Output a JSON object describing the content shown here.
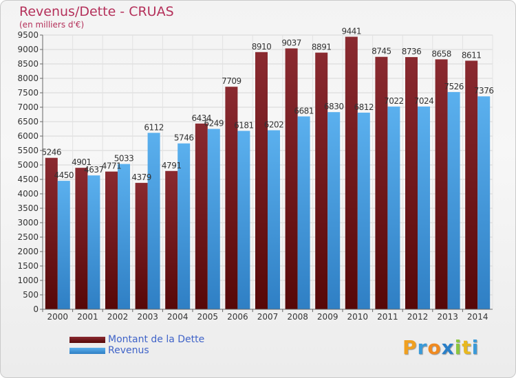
{
  "header": {
    "title": "Revenus/Dette - CRUAS",
    "subtitle": "(en milliers d'€)"
  },
  "chart_data": {
    "type": "bar",
    "title": "Revenus/Dette - CRUAS",
    "subtitle": "(en milliers d'€)",
    "categories": [
      "2000",
      "2001",
      "2002",
      "2003",
      "2004",
      "2005",
      "2006",
      "2007",
      "2008",
      "2009",
      "2010",
      "2011",
      "2012",
      "2013",
      "2014"
    ],
    "series": [
      {
        "name": "Montant de la Dette",
        "color": "#7a1c22",
        "values": [
          5246,
          4901,
          4771,
          4379,
          4791,
          6434,
          7709,
          8910,
          9037,
          8891,
          9441,
          8745,
          8736,
          8658,
          8611
        ]
      },
      {
        "name": "Revenus",
        "color": "#4aa3e6",
        "values": [
          4450,
          4637,
          5033,
          6112,
          5746,
          6249,
          6181,
          6202,
          6681,
          6830,
          6812,
          7022,
          7024,
          7526,
          7376
        ]
      }
    ],
    "ylim": [
      0,
      9500
    ],
    "ytick_step": 500,
    "grid": true,
    "legend_position": "bottom-left"
  },
  "legend": {
    "items": [
      {
        "label": "Montant de la Dette",
        "color": "#7a1c22"
      },
      {
        "label": "Revenus",
        "color": "#4aa3e6"
      }
    ]
  },
  "logo": {
    "text": "Proxiti"
  }
}
